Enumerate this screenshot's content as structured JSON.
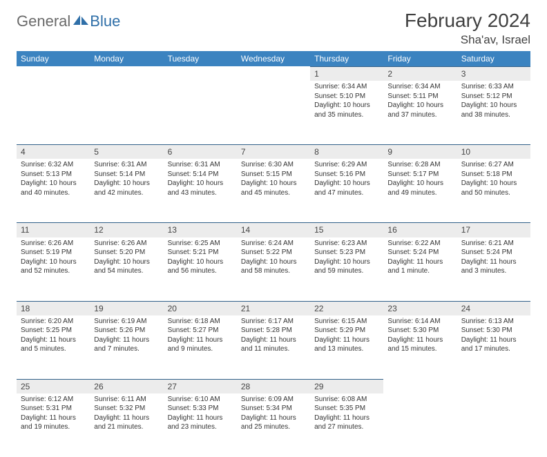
{
  "logo": {
    "part1": "General",
    "part2": "Blue"
  },
  "title": "February 2024",
  "location": "Sha'av, Israel",
  "colors": {
    "header_bg": "#3b83c0",
    "header_text": "#ffffff",
    "daynum_bg": "#ececec",
    "daynum_border": "#2f5f88",
    "body_text": "#333333",
    "logo_gray": "#6a6a6a",
    "logo_blue": "#2f6fa8",
    "page_bg": "#ffffff"
  },
  "weekdays": [
    "Sunday",
    "Monday",
    "Tuesday",
    "Wednesday",
    "Thursday",
    "Friday",
    "Saturday"
  ],
  "weeks": [
    [
      null,
      null,
      null,
      null,
      {
        "n": "1",
        "sr": "6:34 AM",
        "ss": "5:10 PM",
        "dl": "10 hours and 35 minutes."
      },
      {
        "n": "2",
        "sr": "6:34 AM",
        "ss": "5:11 PM",
        "dl": "10 hours and 37 minutes."
      },
      {
        "n": "3",
        "sr": "6:33 AM",
        "ss": "5:12 PM",
        "dl": "10 hours and 38 minutes."
      }
    ],
    [
      {
        "n": "4",
        "sr": "6:32 AM",
        "ss": "5:13 PM",
        "dl": "10 hours and 40 minutes."
      },
      {
        "n": "5",
        "sr": "6:31 AM",
        "ss": "5:14 PM",
        "dl": "10 hours and 42 minutes."
      },
      {
        "n": "6",
        "sr": "6:31 AM",
        "ss": "5:14 PM",
        "dl": "10 hours and 43 minutes."
      },
      {
        "n": "7",
        "sr": "6:30 AM",
        "ss": "5:15 PM",
        "dl": "10 hours and 45 minutes."
      },
      {
        "n": "8",
        "sr": "6:29 AM",
        "ss": "5:16 PM",
        "dl": "10 hours and 47 minutes."
      },
      {
        "n": "9",
        "sr": "6:28 AM",
        "ss": "5:17 PM",
        "dl": "10 hours and 49 minutes."
      },
      {
        "n": "10",
        "sr": "6:27 AM",
        "ss": "5:18 PM",
        "dl": "10 hours and 50 minutes."
      }
    ],
    [
      {
        "n": "11",
        "sr": "6:26 AM",
        "ss": "5:19 PM",
        "dl": "10 hours and 52 minutes."
      },
      {
        "n": "12",
        "sr": "6:26 AM",
        "ss": "5:20 PM",
        "dl": "10 hours and 54 minutes."
      },
      {
        "n": "13",
        "sr": "6:25 AM",
        "ss": "5:21 PM",
        "dl": "10 hours and 56 minutes."
      },
      {
        "n": "14",
        "sr": "6:24 AM",
        "ss": "5:22 PM",
        "dl": "10 hours and 58 minutes."
      },
      {
        "n": "15",
        "sr": "6:23 AM",
        "ss": "5:23 PM",
        "dl": "10 hours and 59 minutes."
      },
      {
        "n": "16",
        "sr": "6:22 AM",
        "ss": "5:24 PM",
        "dl": "11 hours and 1 minute."
      },
      {
        "n": "17",
        "sr": "6:21 AM",
        "ss": "5:24 PM",
        "dl": "11 hours and 3 minutes."
      }
    ],
    [
      {
        "n": "18",
        "sr": "6:20 AM",
        "ss": "5:25 PM",
        "dl": "11 hours and 5 minutes."
      },
      {
        "n": "19",
        "sr": "6:19 AM",
        "ss": "5:26 PM",
        "dl": "11 hours and 7 minutes."
      },
      {
        "n": "20",
        "sr": "6:18 AM",
        "ss": "5:27 PM",
        "dl": "11 hours and 9 minutes."
      },
      {
        "n": "21",
        "sr": "6:17 AM",
        "ss": "5:28 PM",
        "dl": "11 hours and 11 minutes."
      },
      {
        "n": "22",
        "sr": "6:15 AM",
        "ss": "5:29 PM",
        "dl": "11 hours and 13 minutes."
      },
      {
        "n": "23",
        "sr": "6:14 AM",
        "ss": "5:30 PM",
        "dl": "11 hours and 15 minutes."
      },
      {
        "n": "24",
        "sr": "6:13 AM",
        "ss": "5:30 PM",
        "dl": "11 hours and 17 minutes."
      }
    ],
    [
      {
        "n": "25",
        "sr": "6:12 AM",
        "ss": "5:31 PM",
        "dl": "11 hours and 19 minutes."
      },
      {
        "n": "26",
        "sr": "6:11 AM",
        "ss": "5:32 PM",
        "dl": "11 hours and 21 minutes."
      },
      {
        "n": "27",
        "sr": "6:10 AM",
        "ss": "5:33 PM",
        "dl": "11 hours and 23 minutes."
      },
      {
        "n": "28",
        "sr": "6:09 AM",
        "ss": "5:34 PM",
        "dl": "11 hours and 25 minutes."
      },
      {
        "n": "29",
        "sr": "6:08 AM",
        "ss": "5:35 PM",
        "dl": "11 hours and 27 minutes."
      },
      null,
      null
    ]
  ],
  "labels": {
    "sunrise": "Sunrise:",
    "sunset": "Sunset:",
    "daylight": "Daylight:"
  }
}
